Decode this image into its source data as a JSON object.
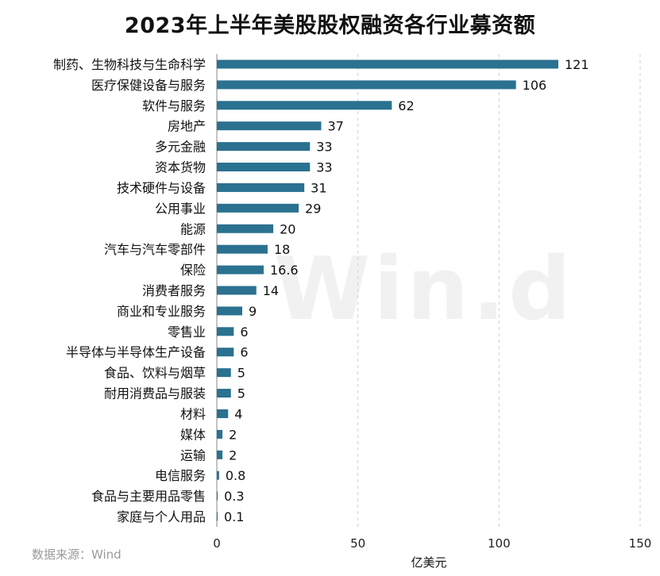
{
  "title": "2023年上半年美股股权融资各行业募资额",
  "source_note": "数据来源：Wind",
  "watermark": "Win.d",
  "colors": {
    "bar": "#2b7190",
    "grid": "#d0d0d0"
  },
  "chart_data": {
    "type": "bar",
    "orientation": "horizontal",
    "title": "2023年上半年美股股权融资各行业募资额",
    "xlabel": "亿美元",
    "ylabel": "",
    "xlim": [
      0,
      150
    ],
    "xticks": [
      0,
      50,
      100,
      150
    ],
    "grid": true,
    "categories": [
      "制药、生物科技与生命科学",
      "医疗保健设备与服务",
      "软件与服务",
      "房地产",
      "多元金融",
      "资本货物",
      "技术硬件与设备",
      "公用事业",
      "能源",
      "汽车与汽车零部件",
      "保险",
      "消费者服务",
      "商业和专业服务",
      "零售业",
      "半导体与半导体生产设备",
      "食品、饮料与烟草",
      "耐用消费品与服装",
      "材料",
      "媒体",
      "运输",
      "电信服务",
      "食品与主要用品零售",
      "家庭与个人用品"
    ],
    "values": [
      121,
      106,
      62,
      37,
      33,
      33,
      31,
      29,
      20,
      18,
      16.6,
      14,
      9,
      6,
      6,
      5,
      5,
      4,
      2,
      2,
      0.8,
      0.3,
      0.1
    ],
    "data_labels": [
      "121",
      "106",
      "62",
      "37",
      "33",
      "33",
      "31",
      "29",
      "20",
      "18",
      "16.6",
      "14",
      "9",
      "6",
      "6",
      "5",
      "5",
      "4",
      "2",
      "2",
      "0.8",
      "0.3",
      "0.1"
    ]
  }
}
